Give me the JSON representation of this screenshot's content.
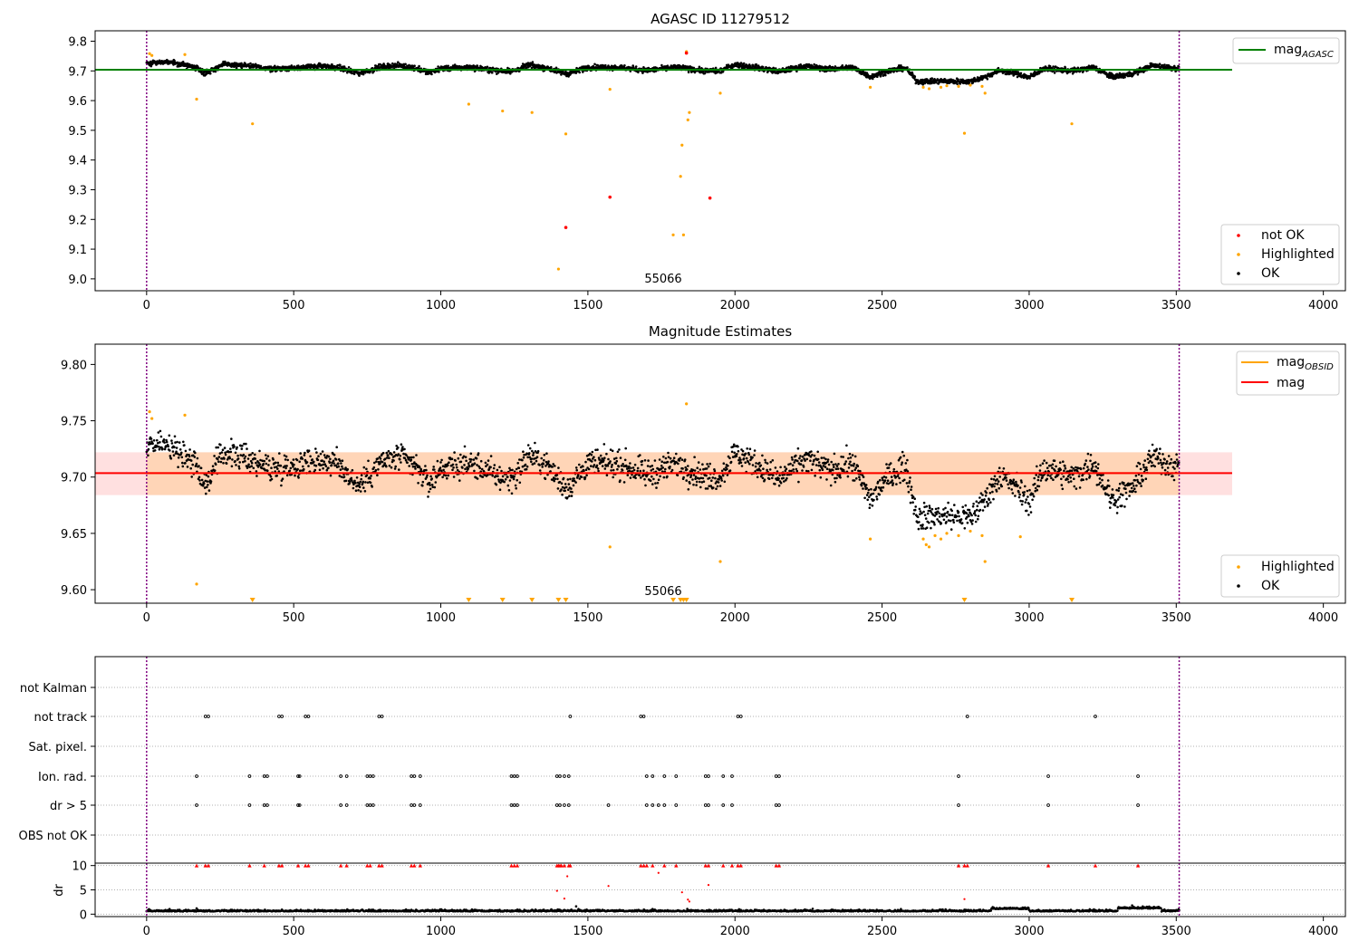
{
  "chart_data": [
    {
      "type": "scatter",
      "title": "AGASC ID 11279512",
      "xlabel": "",
      "ylabel": "",
      "xlim": [
        -175,
        4075
      ],
      "ylim": [
        8.96,
        9.835
      ],
      "x_ticks": [
        0,
        500,
        1000,
        1500,
        2000,
        2500,
        3000,
        3500,
        4000
      ],
      "x_tick_labels": [
        "0",
        "500",
        "1000",
        "1500",
        "2000",
        "2500",
        "3000",
        "3500",
        "4000"
      ],
      "y_ticks": [
        9.0,
        9.1,
        9.2,
        9.3,
        9.4,
        9.5,
        9.6,
        9.7,
        9.8
      ],
      "y_tick_labels": [
        "9.0",
        "9.1",
        "9.2",
        "9.3",
        "9.4",
        "9.5",
        "9.6",
        "9.7",
        "9.8"
      ],
      "obsid_bounds": [
        0,
        3510
      ],
      "obsid_label": {
        "text": "55066",
        "x": 1755
      },
      "reference_lines": [
        {
          "name": "mag_AGASC",
          "value": 9.704,
          "x_range": [
            -175,
            3690
          ],
          "color": "#008000"
        }
      ],
      "legends": [
        {
          "placement": "upper right",
          "entries": [
            {
              "label": "mag",
              "sub": "AGASC",
              "marker": "line",
              "color": "#008000"
            }
          ]
        },
        {
          "placement": "lower right",
          "entries": [
            {
              "label": "not OK",
              "marker": "dot",
              "color": "#ff0000"
            },
            {
              "label": "Highlighted",
              "marker": "dot",
              "color": "#ffa500"
            },
            {
              "label": "OK",
              "marker": "dot",
              "color": "#000000"
            }
          ]
        }
      ],
      "ok_trend": [
        [
          0,
          9.726
        ],
        [
          60,
          9.73
        ],
        [
          120,
          9.722
        ],
        [
          170,
          9.712
        ],
        [
          200,
          9.692
        ],
        [
          260,
          9.722
        ],
        [
          330,
          9.718
        ],
        [
          420,
          9.708
        ],
        [
          500,
          9.71
        ],
        [
          580,
          9.716
        ],
        [
          650,
          9.712
        ],
        [
          720,
          9.692
        ],
        [
          800,
          9.714
        ],
        [
          860,
          9.718
        ],
        [
          920,
          9.708
        ],
        [
          960,
          9.694
        ],
        [
          1000,
          9.708
        ],
        [
          1100,
          9.712
        ],
        [
          1200,
          9.7
        ],
        [
          1250,
          9.7
        ],
        [
          1300,
          9.72
        ],
        [
          1360,
          9.71
        ],
        [
          1430,
          9.69
        ],
        [
          1500,
          9.712
        ],
        [
          1600,
          9.712
        ],
        [
          1700,
          9.702
        ],
        [
          1800,
          9.712
        ],
        [
          1900,
          9.7
        ],
        [
          1950,
          9.7
        ],
        [
          2000,
          9.722
        ],
        [
          2080,
          9.71
        ],
        [
          2150,
          9.698
        ],
        [
          2240,
          9.716
        ],
        [
          2320,
          9.706
        ],
        [
          2400,
          9.712
        ],
        [
          2460,
          9.68
        ],
        [
          2520,
          9.7
        ],
        [
          2580,
          9.71
        ],
        [
          2620,
          9.664
        ],
        [
          2700,
          9.666
        ],
        [
          2800,
          9.664
        ],
        [
          2850,
          9.68
        ],
        [
          2900,
          9.702
        ],
        [
          2960,
          9.69
        ],
        [
          3000,
          9.678
        ],
        [
          3050,
          9.708
        ],
        [
          3150,
          9.7
        ],
        [
          3220,
          9.712
        ],
        [
          3280,
          9.68
        ],
        [
          3350,
          9.69
        ],
        [
          3420,
          9.718
        ],
        [
          3510,
          9.708
        ]
      ],
      "highlighted_points": [
        [
          10,
          9.758
        ],
        [
          18,
          9.752
        ],
        [
          130,
          9.755
        ],
        [
          170,
          9.605
        ],
        [
          360,
          9.522
        ],
        [
          1095,
          9.588
        ],
        [
          1210,
          9.565
        ],
        [
          1310,
          9.56
        ],
        [
          1400,
          9.033
        ],
        [
          1425,
          9.488
        ],
        [
          1575,
          9.638
        ],
        [
          1790,
          9.148
        ],
        [
          1815,
          9.345
        ],
        [
          1820,
          9.45
        ],
        [
          1825,
          9.148
        ],
        [
          1835,
          9.765
        ],
        [
          1840,
          9.535
        ],
        [
          1845,
          9.56
        ],
        [
          1950,
          9.625
        ],
        [
          2460,
          9.645
        ],
        [
          2640,
          9.645
        ],
        [
          2660,
          9.64
        ],
        [
          2700,
          9.645
        ],
        [
          2720,
          9.65
        ],
        [
          2760,
          9.648
        ],
        [
          2780,
          9.49
        ],
        [
          2800,
          9.652
        ],
        [
          2840,
          9.648
        ],
        [
          2850,
          9.625
        ],
        [
          3145,
          9.522
        ]
      ],
      "not_ok_points": [
        [
          1575,
          9.275
        ],
        [
          1425,
          9.173
        ],
        [
          1915,
          9.272
        ],
        [
          1835,
          9.76
        ]
      ]
    },
    {
      "type": "scatter",
      "title": "Magnitude Estimates",
      "xlabel": "",
      "ylabel": "",
      "xlim": [
        -175,
        4075
      ],
      "ylim": [
        9.588,
        9.818
      ],
      "x_ticks": [
        0,
        500,
        1000,
        1500,
        2000,
        2500,
        3000,
        3500,
        4000
      ],
      "x_tick_labels": [
        "0",
        "500",
        "1000",
        "1500",
        "2000",
        "2500",
        "3000",
        "3500",
        "4000"
      ],
      "y_ticks": [
        9.6,
        9.65,
        9.7,
        9.75,
        9.8
      ],
      "y_tick_labels": [
        "9.60",
        "9.65",
        "9.70",
        "9.75",
        "9.80"
      ],
      "obsid_bounds": [
        0,
        3510
      ],
      "obsid_label": {
        "text": "55066",
        "x": 1755
      },
      "mag_obsid": {
        "value": 9.7035,
        "x_range": [
          0,
          3510
        ],
        "band": [
          9.684,
          9.722
        ],
        "color": "#ffa500"
      },
      "mag": {
        "value": 9.7035,
        "x_range": [
          -175,
          3690
        ],
        "band": [
          9.684,
          9.722
        ],
        "color": "#ff0000"
      },
      "legends": [
        {
          "placement": "upper right",
          "entries": [
            {
              "label": "mag",
              "sub": "OBSID",
              "marker": "line",
              "color": "#ffa500"
            },
            {
              "label": "mag",
              "sub": "",
              "marker": "line",
              "color": "#ff0000"
            }
          ]
        },
        {
          "placement": "lower right",
          "entries": [
            {
              "label": "Highlighted",
              "marker": "dot",
              "color": "#ffa500"
            },
            {
              "label": "OK",
              "marker": "dot",
              "color": "#000000"
            }
          ]
        }
      ],
      "highlighted_points": [
        [
          10,
          9.758
        ],
        [
          18,
          9.752
        ],
        [
          130,
          9.755
        ],
        [
          170,
          9.605
        ],
        [
          1575,
          9.638
        ],
        [
          1835,
          9.765
        ],
        [
          1950,
          9.625
        ],
        [
          2460,
          9.645
        ],
        [
          2640,
          9.645
        ],
        [
          2650,
          9.64
        ],
        [
          2660,
          9.638
        ],
        [
          2680,
          9.648
        ],
        [
          2700,
          9.645
        ],
        [
          2720,
          9.65
        ],
        [
          2760,
          9.648
        ],
        [
          2800,
          9.652
        ],
        [
          2840,
          9.648
        ],
        [
          2850,
          9.625
        ],
        [
          2970,
          9.647
        ]
      ],
      "below_range_markers": [
        360,
        1095,
        1210,
        1310,
        1400,
        1425,
        1790,
        1815,
        1825,
        1835,
        2780,
        3145
      ]
    },
    {
      "type": "scatter",
      "title": "",
      "xlim": [
        -175,
        4075
      ],
      "x_ticks": [
        0,
        500,
        1000,
        1500,
        2000,
        2500,
        3000,
        3500,
        4000
      ],
      "x_tick_labels": [
        "0",
        "500",
        "1000",
        "1500",
        "2000",
        "2500",
        "3000",
        "3500",
        "4000"
      ],
      "obsid_bounds": [
        0,
        3510
      ],
      "flag_categories": [
        "not Kalman",
        "not track",
        "Sat. pixel.",
        "Ion. rad.",
        "dr > 5",
        "OBS not OK"
      ],
      "flags": {
        "not Kalman": [],
        "not track": [
          200,
          210,
          450,
          460,
          540,
          550,
          790,
          800,
          1440,
          1680,
          1690,
          2010,
          2020,
          2790,
          3225
        ],
        "Sat. pixel.": [],
        "Ion. rad.": [
          170,
          350,
          400,
          410,
          515,
          520,
          660,
          680,
          750,
          760,
          770,
          900,
          910,
          930,
          1240,
          1250,
          1260,
          1395,
          1405,
          1420,
          1435,
          1700,
          1720,
          1760,
          1800,
          1900,
          1910,
          1960,
          1990,
          2140,
          2150,
          2760,
          3065,
          3370
        ],
        "dr > 5": [
          170,
          350,
          400,
          410,
          515,
          520,
          660,
          680,
          750,
          760,
          770,
          900,
          910,
          930,
          1240,
          1250,
          1260,
          1395,
          1405,
          1420,
          1435,
          1570,
          1700,
          1720,
          1740,
          1760,
          1800,
          1900,
          1910,
          1960,
          1990,
          2140,
          2150,
          2760,
          3065,
          3370
        ],
        "OBS not OK": []
      },
      "dr_ylabel": "dr",
      "dr_ylim": [
        -0.5,
        10.5
      ],
      "dr_y_ticks": [
        0,
        5,
        10
      ],
      "dr_y_tick_labels": [
        "0",
        "5",
        "10"
      ],
      "dr_clipped_markers": [
        170,
        200,
        210,
        350,
        400,
        450,
        460,
        515,
        540,
        550,
        660,
        680,
        750,
        760,
        790,
        800,
        900,
        910,
        930,
        1240,
        1250,
        1260,
        1395,
        1400,
        1405,
        1410,
        1420,
        1435,
        1440,
        1680,
        1690,
        1700,
        1720,
        1760,
        1800,
        1900,
        1910,
        1960,
        1990,
        2010,
        2020,
        2140,
        2150,
        2760,
        2780,
        2790,
        3065,
        3225,
        3370
      ],
      "dr_points": [
        [
          1395,
          4.8
        ],
        [
          1420,
          3.2
        ],
        [
          1430,
          7.8
        ],
        [
          1570,
          5.8
        ],
        [
          1740,
          8.5
        ],
        [
          1820,
          4.5
        ],
        [
          1840,
          3.0
        ],
        [
          1845,
          2.6
        ],
        [
          1910,
          6.0
        ],
        [
          2780,
          3.1
        ],
        [
          170,
          1.2
        ],
        [
          1460,
          1.6
        ],
        [
          3350,
          1.8
        ],
        [
          3400,
          1.5
        ]
      ]
    }
  ]
}
